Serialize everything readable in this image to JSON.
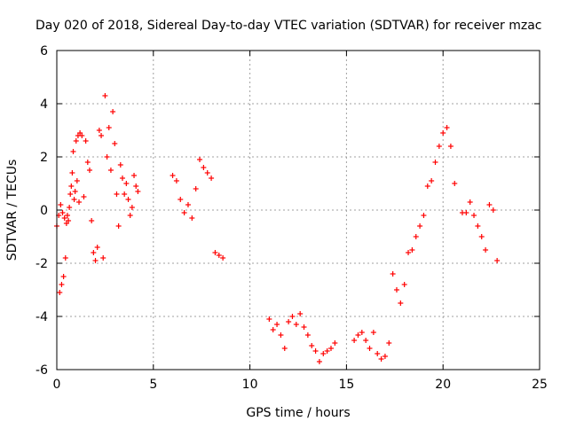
{
  "chart_data": {
    "type": "scatter",
    "title": "Day 020 of 2018, Sidereal Day-to-day VTEC variation (SDTVAR) for receiver mzac",
    "xlabel": "GPS time / hours",
    "ylabel": "SDTVAR / TECUs",
    "xlim": [
      0,
      25
    ],
    "ylim": [
      -6,
      6
    ],
    "xticks": [
      0,
      5,
      10,
      15,
      20,
      25
    ],
    "yticks": [
      -6,
      -4,
      -2,
      0,
      2,
      4,
      6
    ],
    "grid": true,
    "marker": "+",
    "color": "#ff0000",
    "series": [
      {
        "name": "SDTVAR",
        "x": [
          0.0,
          0.1,
          0.15,
          0.2,
          0.25,
          0.3,
          0.35,
          0.4,
          0.45,
          0.5,
          0.55,
          0.6,
          0.65,
          0.7,
          0.75,
          0.8,
          0.85,
          0.9,
          0.95,
          1.0,
          1.05,
          1.1,
          1.15,
          1.2,
          1.3,
          1.4,
          1.5,
          1.6,
          1.7,
          1.8,
          1.9,
          2.0,
          2.1,
          2.2,
          2.3,
          2.4,
          2.5,
          2.6,
          2.7,
          2.8,
          2.9,
          3.0,
          3.1,
          3.2,
          3.3,
          3.4,
          3.5,
          3.6,
          3.7,
          3.8,
          3.9,
          4.0,
          4.1,
          4.2,
          6.0,
          6.2,
          6.4,
          6.6,
          6.8,
          7.0,
          7.2,
          7.4,
          7.6,
          7.8,
          8.0,
          8.2,
          8.4,
          8.6,
          11.0,
          11.2,
          11.4,
          11.6,
          11.8,
          12.0,
          12.2,
          12.4,
          12.6,
          12.8,
          13.0,
          13.2,
          13.4,
          13.6,
          13.8,
          14.0,
          14.2,
          14.4,
          15.4,
          15.6,
          15.8,
          16.0,
          16.2,
          16.4,
          16.6,
          16.8,
          17.0,
          17.2,
          17.4,
          17.6,
          17.8,
          18.0,
          18.2,
          18.4,
          18.6,
          18.8,
          19.0,
          19.2,
          19.4,
          19.6,
          19.8,
          20.0,
          20.2,
          20.4,
          20.6,
          21.0,
          21.2,
          21.4,
          21.6,
          21.8,
          22.0,
          22.2,
          22.4,
          22.6,
          22.8
        ],
        "y": [
          -0.6,
          -0.2,
          -3.1,
          0.2,
          -2.8,
          -0.1,
          -2.5,
          -0.3,
          -1.8,
          -0.5,
          -0.2,
          -0.4,
          0.1,
          0.6,
          0.9,
          1.4,
          2.2,
          0.4,
          0.7,
          2.6,
          1.1,
          2.8,
          0.3,
          2.9,
          2.8,
          0.5,
          2.6,
          1.8,
          1.5,
          -0.4,
          -1.6,
          -1.9,
          -1.4,
          3.0,
          2.8,
          -1.8,
          4.3,
          2.0,
          3.1,
          1.5,
          3.7,
          2.5,
          0.6,
          -0.6,
          1.7,
          1.2,
          0.6,
          1.0,
          0.4,
          -0.2,
          0.1,
          1.3,
          0.9,
          0.7,
          1.3,
          1.1,
          0.4,
          -0.1,
          0.2,
          -0.3,
          0.8,
          1.9,
          1.6,
          1.4,
          1.2,
          -1.6,
          -1.7,
          -1.8,
          -4.1,
          -4.5,
          -4.3,
          -4.7,
          -5.2,
          -4.2,
          -4.0,
          -4.3,
          -3.9,
          -4.4,
          -4.7,
          -5.1,
          -5.3,
          -5.7,
          -5.4,
          -5.3,
          -5.2,
          -5.0,
          -4.9,
          -4.7,
          -4.6,
          -4.9,
          -5.2,
          -4.6,
          -5.4,
          -5.6,
          -5.5,
          -5.0,
          -2.4,
          -3.0,
          -3.5,
          -2.8,
          -1.6,
          -1.5,
          -1.0,
          -0.6,
          -0.2,
          0.9,
          1.1,
          1.8,
          2.4,
          2.9,
          3.1,
          2.4,
          1.0,
          -0.1,
          -0.1,
          0.3,
          -0.2,
          -0.6,
          -1.0,
          -1.5,
          0.2,
          0.0,
          -1.9
        ]
      }
    ]
  }
}
